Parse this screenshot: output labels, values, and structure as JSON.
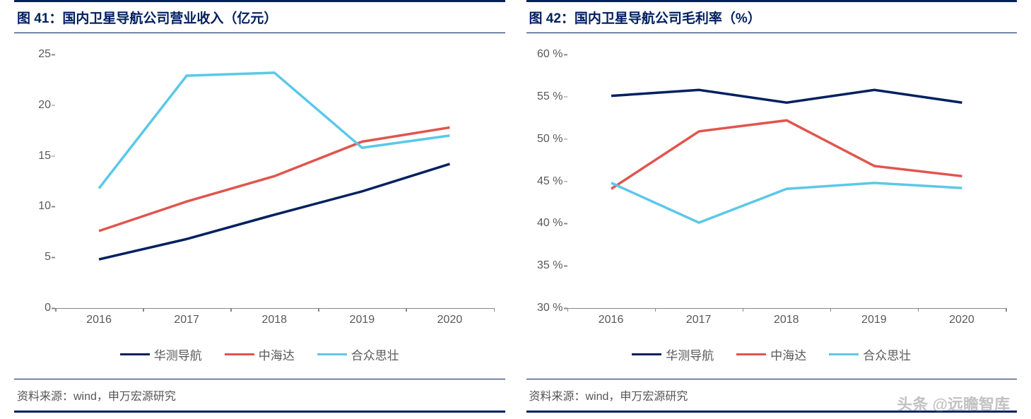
{
  "colors": {
    "brand_border": "#002060",
    "axis": "#888888",
    "tick_text": "#595959",
    "series1": "#002060",
    "series2": "#e0554e",
    "series3": "#5bc8e8",
    "background": "#ffffff"
  },
  "watermark": "头条 @远瞻智库",
  "left_chart": {
    "title": "图 41：国内卫星导航公司营业收入（亿元）",
    "source": "资料来源：wind，申万宏源研究",
    "type": "line",
    "x_categories": [
      "2016",
      "2017",
      "2018",
      "2019",
      "2020"
    ],
    "ylim": [
      0,
      25
    ],
    "ytick_step": 5,
    "y_suffix": "",
    "series": [
      {
        "name": "华测导航",
        "color_key": "series1",
        "values": [
          4.8,
          6.8,
          9.2,
          11.5,
          14.2
        ]
      },
      {
        "name": "中海达",
        "color_key": "series2",
        "values": [
          7.6,
          10.5,
          13.0,
          16.4,
          17.8
        ]
      },
      {
        "name": "合众思壮",
        "color_key": "series3",
        "values": [
          11.8,
          22.9,
          23.2,
          15.8,
          17.0
        ]
      }
    ],
    "line_width": 3.5,
    "label_fontsize": 16,
    "title_fontsize": 19
  },
  "right_chart": {
    "title": "图 42：国内卫星导航公司毛利率（%）",
    "source": "资料来源：wind，申万宏源研究",
    "type": "line",
    "x_categories": [
      "2016",
      "2017",
      "2018",
      "2019",
      "2020"
    ],
    "ylim": [
      30,
      60
    ],
    "ytick_step": 5,
    "y_suffix": " %",
    "series": [
      {
        "name": "华测导航",
        "color_key": "series1",
        "values": [
          55.1,
          55.8,
          54.3,
          55.8,
          54.3
        ]
      },
      {
        "name": "中海达",
        "color_key": "series2",
        "values": [
          44.1,
          50.9,
          52.2,
          46.8,
          45.6
        ]
      },
      {
        "name": "合众思壮",
        "color_key": "series3",
        "values": [
          44.8,
          40.1,
          44.1,
          44.8,
          44.2
        ]
      }
    ],
    "line_width": 3.5,
    "label_fontsize": 16,
    "title_fontsize": 19
  }
}
